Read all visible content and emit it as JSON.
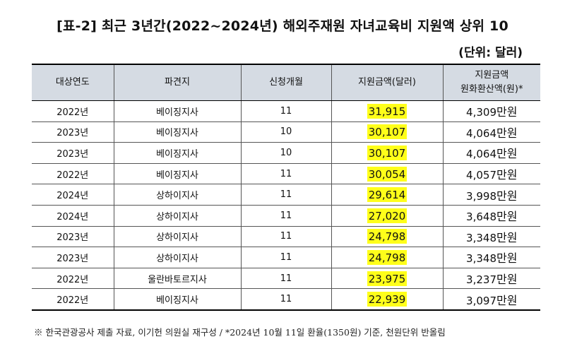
{
  "title": "[표-2] 최근 3년간(2022~2024년) 해외주재원 자녀교육비 지원액 상위 10",
  "unit": "(단위: 달러)",
  "headers": {
    "year": "대상연도",
    "location": "파견지",
    "months": "신청개월",
    "amount_usd": "지원금액(달러)",
    "amount_krw_line1": "지원금액",
    "amount_krw_line2": "원화환산액(원)*"
  },
  "rows": [
    {
      "year": "2022년",
      "location": "베이징지사",
      "months": "11",
      "usd": "31,915",
      "krw": "4,309",
      "suffix": "만원"
    },
    {
      "year": "2023년",
      "location": "베이징지사",
      "months": "10",
      "usd": "30,107",
      "krw": "4,064",
      "suffix": "만원"
    },
    {
      "year": "2023년",
      "location": "베이징지사",
      "months": "10",
      "usd": "30,107",
      "krw": "4,064",
      "suffix": "만원"
    },
    {
      "year": "2022년",
      "location": "베이징지사",
      "months": "11",
      "usd": "30,054",
      "krw": "4,057",
      "suffix": "만원"
    },
    {
      "year": "2024년",
      "location": "상하이지사",
      "months": "11",
      "usd": "29,614",
      "krw": "3,998",
      "suffix": "만원"
    },
    {
      "year": "2024년",
      "location": "상하이지사",
      "months": "11",
      "usd": "27,020",
      "krw": "3,648",
      "suffix": "만원"
    },
    {
      "year": "2023년",
      "location": "상하이지사",
      "months": "11",
      "usd": "24,798",
      "krw": "3,348",
      "suffix": "만원"
    },
    {
      "year": "2023년",
      "location": "상하이지사",
      "months": "11",
      "usd": "24,798",
      "krw": "3,348",
      "suffix": "만원"
    },
    {
      "year": "2022년",
      "location": "울란바토르지사",
      "months": "11",
      "usd": "23,975",
      "krw": "3,237",
      "suffix": "만원"
    },
    {
      "year": "2022년",
      "location": "베이징지사",
      "months": "11",
      "usd": "22,939",
      "krw": "3,097",
      "suffix": "만원"
    }
  ],
  "footnote": "※ 한국관광공사 제출 자료, 이기헌 의원실 재구성 / *2024년 10월 11일 환율(1350원) 기준, 천원단위 반올림",
  "colors": {
    "header_bg": "#d5dbe3",
    "highlight": "#ffff1a"
  }
}
